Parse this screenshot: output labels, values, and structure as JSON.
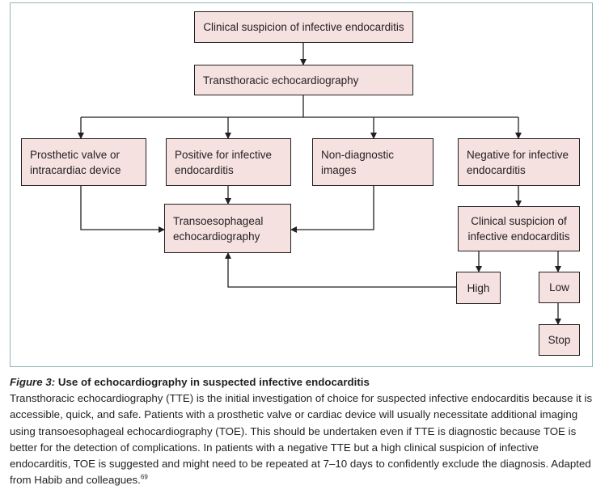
{
  "nodes": {
    "suspicion": "Clinical suspicion of infective endocarditis",
    "tte": "Transthoracic echocardiography",
    "prosthetic": "Prosthetic valve or intracardiac device",
    "positive": "Positive for infective endocarditis",
    "nondiagnostic": "Non-diagnostic images",
    "negative": "Negative for infective endocarditis",
    "toe": "Transoesophageal echocardiography",
    "clinical_suspicion_2": "Clinical suspicion of infective endocarditis",
    "high": "High",
    "low": "Low",
    "stop": "Stop"
  },
  "caption": {
    "figure_label": "Figure 3:",
    "title": "Use of echocardiography in suspected infective endocarditis",
    "body": "Transthoracic echocardiography (TTE) is the initial investigation of choice for suspected infective endocarditis because it is accessible, quick, and safe. Patients with a prosthetic valve or cardiac device will usually necessitate additional imaging using transoesophageal echocardiography (TOE). This should be undertaken even if TTE is diagnostic because TOE is better for the detection of complications. In patients with a negative TTE but a high clinical suspicion of infective endocarditis, TOE is suggested and might need to be repeated at 7–10 days to confidently exclude the diagnosis. Adapted from Habib and colleagues.",
    "reference": "69"
  }
}
